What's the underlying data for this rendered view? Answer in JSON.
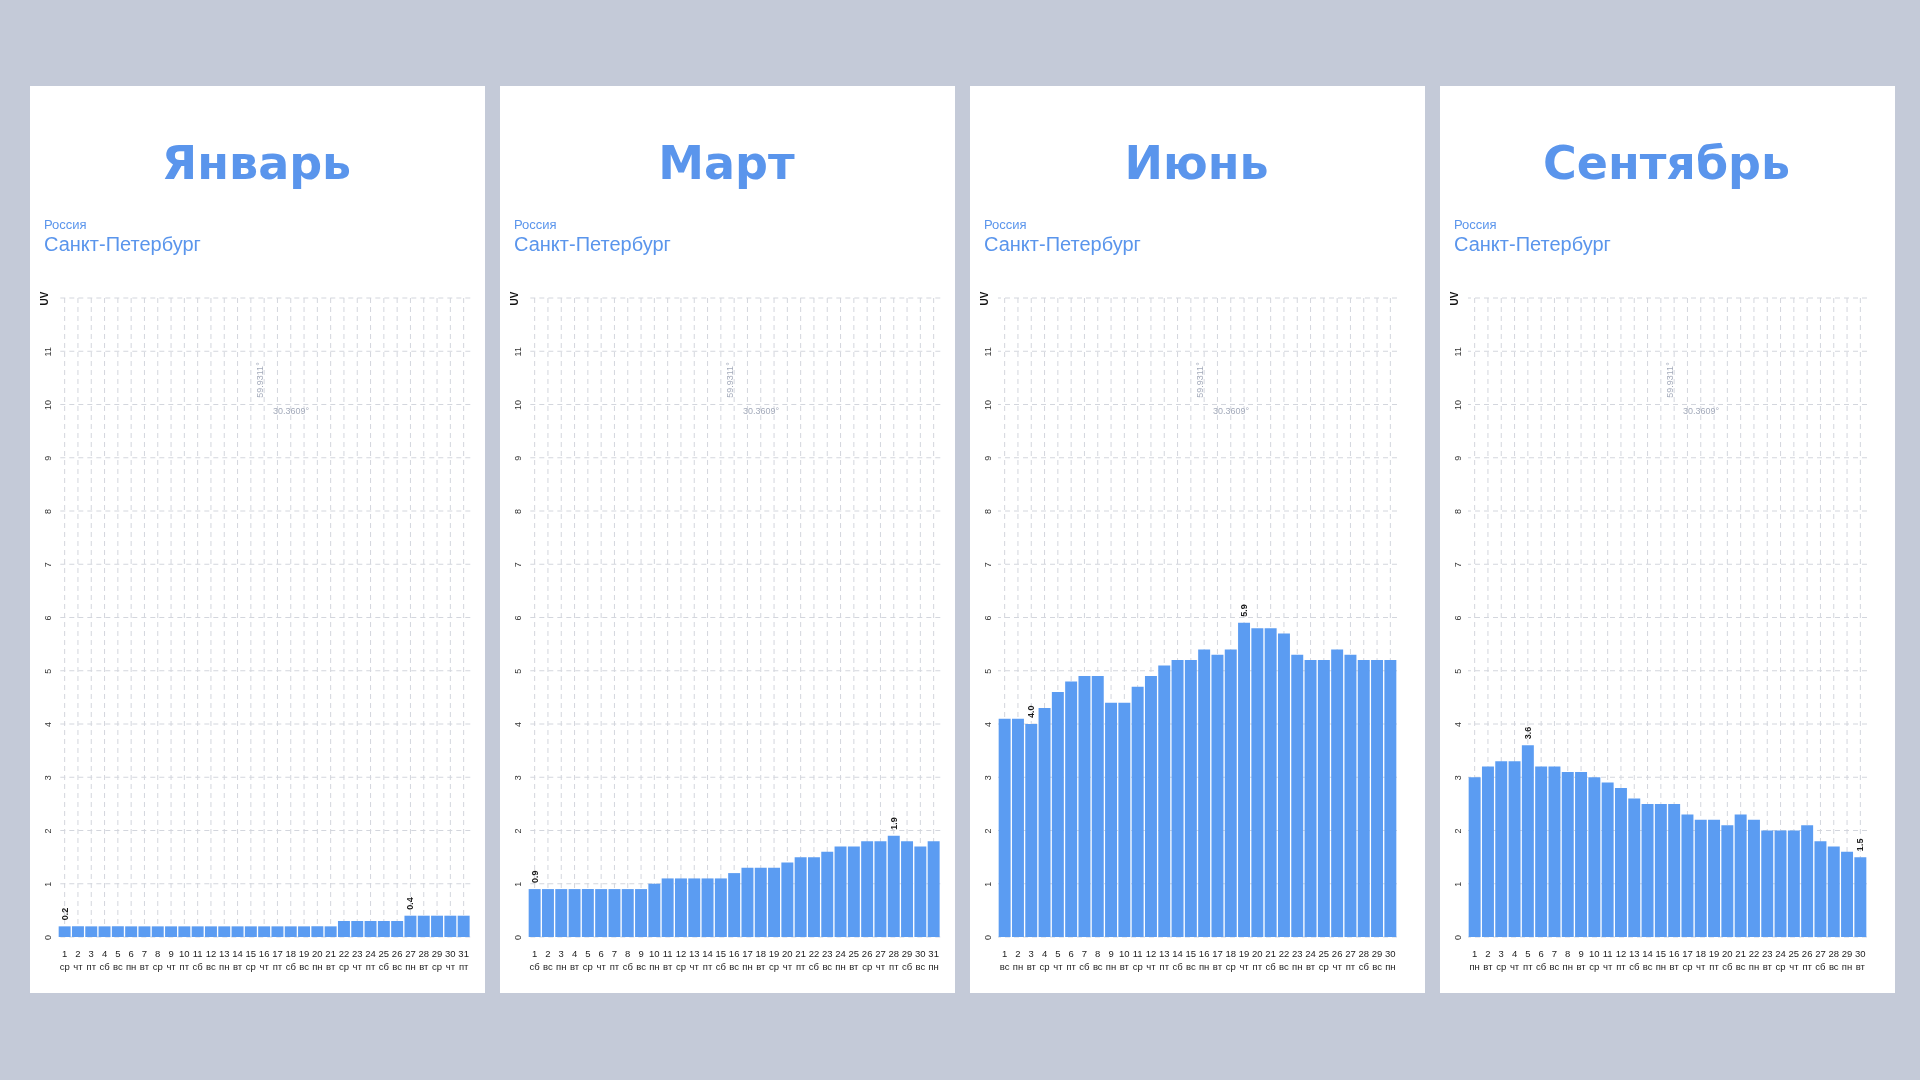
{
  "chart_data": [
    {
      "type": "bar",
      "title": "Январь",
      "subtitle": "Россия\nСанкт-Петербург",
      "ylabel": "UV",
      "color": "#5b9cf2",
      "categories": [
        "1\nср",
        "2\nчт",
        "3\nпт",
        "4\nсб",
        "5\nвс",
        "6\nпн",
        "7\nвт",
        "8\nср",
        "9\nчт",
        "10\nпт",
        "11\nсб",
        "12\nвс",
        "13\nпн",
        "14\nвт",
        "15\nср",
        "16\nчт",
        "17\nпт",
        "18\nсб",
        "19\nвс",
        "20\nпн",
        "21\nвт",
        "22\nср",
        "23\nчт",
        "24\nпт",
        "25\nсб",
        "26\nвс",
        "27\nпн",
        "28\nвт",
        "29\nср",
        "30\nчт",
        "31\nпт"
      ],
      "values": [
        0.2,
        0.2,
        0.2,
        0.2,
        0.2,
        0.2,
        0.2,
        0.2,
        0.2,
        0.2,
        0.2,
        0.2,
        0.2,
        0.2,
        0.2,
        0.2,
        0.2,
        0.2,
        0.2,
        0.2,
        0.2,
        0.3,
        0.3,
        0.3,
        0.3,
        0.3,
        0.4,
        0.4,
        0.4,
        0.4,
        0.4
      ],
      "ylim": [
        0,
        12
      ],
      "yticks": [
        0,
        1,
        2,
        3,
        4,
        5,
        6,
        7,
        8,
        9,
        10,
        11
      ],
      "grid": true,
      "annotations": [
        "59.9311°",
        "30.3609°",
        {
          "text": "0.2",
          "x": "1\nср",
          "y": 0.2
        },
        {
          "text": "0.4",
          "x": "27\nпн",
          "y": 0.4
        }
      ]
    },
    {
      "type": "bar",
      "title": "Март",
      "subtitle": "Россия\nСанкт-Петербург",
      "ylabel": "UV",
      "color": "#5b9cf2",
      "categories": [
        "1\nсб",
        "2\nвс",
        "3\nпн",
        "4\nвт",
        "5\nср",
        "6\nчт",
        "7\nпт",
        "8\nсб",
        "9\nвс",
        "10\nпн",
        "11\nвт",
        "12\nср",
        "13\nчт",
        "14\nпт",
        "15\nсб",
        "16\nвс",
        "17\nпн",
        "18\nвт",
        "19\nср",
        "20\nчт",
        "21\nпт",
        "22\nсб",
        "23\nвс",
        "24\nпн",
        "25\nвт",
        "26\nср",
        "27\nчт",
        "28\nпт",
        "29\nсб",
        "30\nвс",
        "31\nпн"
      ],
      "values": [
        0.9,
        0.9,
        0.9,
        0.9,
        0.9,
        0.9,
        0.9,
        0.9,
        0.9,
        1.0,
        1.1,
        1.1,
        1.1,
        1.1,
        1.1,
        1.2,
        1.3,
        1.3,
        1.3,
        1.4,
        1.5,
        1.5,
        1.6,
        1.7,
        1.7,
        1.8,
        1.8,
        1.9,
        1.8,
        1.7,
        1.8
      ],
      "ylim": [
        0,
        12
      ],
      "yticks": [
        0,
        1,
        2,
        3,
        4,
        5,
        6,
        7,
        8,
        9,
        10,
        11
      ],
      "grid": true,
      "annotations": [
        "59.9311°",
        "30.3609°",
        {
          "text": "0.9",
          "x": "1\nсб",
          "y": 0.9
        },
        {
          "text": "1.9",
          "x": "28\nпт",
          "y": 1.9
        }
      ]
    },
    {
      "type": "bar",
      "title": "Июнь",
      "subtitle": "Россия\nСанкт-Петербург",
      "ylabel": "UV",
      "color": "#5b9cf2",
      "categories": [
        "1\nвс",
        "2\nпн",
        "3\nвт",
        "4\nср",
        "5\nчт",
        "6\nпт",
        "7\nсб",
        "8\nвс",
        "9\nпн",
        "10\nвт",
        "11\nср",
        "12\nчт",
        "13\nпт",
        "14\nсб",
        "15\nвс",
        "16\nпн",
        "17\nвт",
        "18\nср",
        "19\nчт",
        "20\nпт",
        "21\nсб",
        "22\nвс",
        "23\nпн",
        "24\nвт",
        "25\nср",
        "26\nчт",
        "27\nпт",
        "28\nсб",
        "29\nвс",
        "30\nпн"
      ],
      "values": [
        4.1,
        4.1,
        4.0,
        4.3,
        4.6,
        4.8,
        4.9,
        4.9,
        4.4,
        4.4,
        4.7,
        4.9,
        5.1,
        5.2,
        5.2,
        5.4,
        5.3,
        5.4,
        5.9,
        5.8,
        5.8,
        5.7,
        5.3,
        5.2,
        5.2,
        5.4,
        5.3,
        5.2,
        5.2,
        5.2
      ],
      "ylim": [
        0,
        12
      ],
      "yticks": [
        0,
        1,
        2,
        3,
        4,
        5,
        6,
        7,
        8,
        9,
        10,
        11
      ],
      "grid": true,
      "annotations": [
        "59.9311°",
        "30.3609°",
        {
          "text": "4.0",
          "x": "3\nвт",
          "y": 4.0
        },
        {
          "text": "5.9",
          "x": "19\nчт",
          "y": 5.9
        }
      ]
    },
    {
      "type": "bar",
      "title": "Сентябрь",
      "subtitle": "Россия\nСанкт-Петербург",
      "ylabel": "UV",
      "color": "#5b9cf2",
      "categories": [
        "1\nпн",
        "2\nвт",
        "3\nср",
        "4\nчт",
        "5\nпт",
        "6\nсб",
        "7\nвс",
        "8\nпн",
        "9\nвт",
        "10\nср",
        "11\nчт",
        "12\nпт",
        "13\nсб",
        "14\nвс",
        "15\nпн",
        "16\nвт",
        "17\nср",
        "18\nчт",
        "19\nпт",
        "20\nсб",
        "21\nвс",
        "22\nпн",
        "23\nвт",
        "24\nср",
        "25\nчт",
        "26\nпт",
        "27\nсб",
        "28\nвс",
        "29\nпн",
        "30\nвт"
      ],
      "values": [
        3.0,
        3.2,
        3.3,
        3.3,
        3.6,
        3.2,
        3.2,
        3.1,
        3.1,
        3.0,
        2.9,
        2.8,
        2.6,
        2.5,
        2.5,
        2.5,
        2.3,
        2.2,
        2.2,
        2.1,
        2.3,
        2.2,
        2.0,
        2.0,
        2.0,
        2.1,
        1.8,
        1.7,
        1.6,
        1.5
      ],
      "ylim": [
        0,
        12
      ],
      "yticks": [
        0,
        1,
        2,
        3,
        4,
        5,
        6,
        7,
        8,
        9,
        10,
        11
      ],
      "grid": true,
      "annotations": [
        "59.9311°",
        "30.3609°",
        {
          "text": "3.6",
          "x": "5\nпт",
          "y": 3.6
        },
        {
          "text": "1.5",
          "x": "30\nвт",
          "y": 1.5
        }
      ]
    }
  ]
}
